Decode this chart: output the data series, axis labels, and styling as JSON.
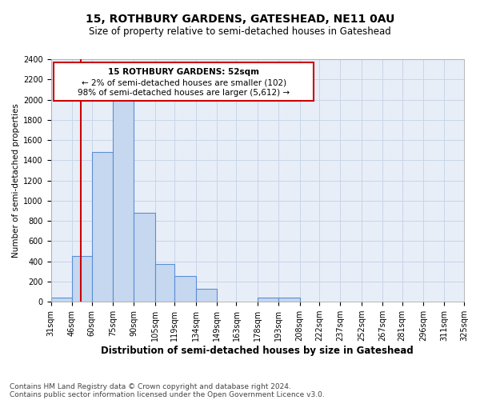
{
  "title": "15, ROTHBURY GARDENS, GATESHEAD, NE11 0AU",
  "subtitle": "Size of property relative to semi-detached houses in Gateshead",
  "xlabel": "Distribution of semi-detached houses by size in Gateshead",
  "ylabel": "Number of semi-detached properties",
  "footnote1": "Contains HM Land Registry data © Crown copyright and database right 2024.",
  "footnote2": "Contains public sector information licensed under the Open Government Licence v3.0.",
  "annotation_line1": "15 ROTHBURY GARDENS: 52sqm",
  "annotation_line2": "← 2% of semi-detached houses are smaller (102)",
  "annotation_line3": "98% of semi-detached houses are larger (5,612) →",
  "property_size": 52,
  "bar_edges": [
    31,
    46,
    60,
    75,
    90,
    105,
    119,
    134,
    149,
    163,
    178,
    193,
    208,
    222,
    237,
    252,
    267,
    281,
    296,
    311,
    325
  ],
  "bar_values": [
    40,
    450,
    1480,
    2000,
    880,
    370,
    255,
    125,
    0,
    0,
    40,
    40,
    0,
    0,
    0,
    0,
    0,
    0,
    0,
    0
  ],
  "bar_color": "#c5d8f0",
  "bar_edge_color": "#5b8ed6",
  "annotation_box_edge_color": "#cc0000",
  "marker_line_color": "#cc0000",
  "ylim": [
    0,
    2400
  ],
  "yticks": [
    0,
    200,
    400,
    600,
    800,
    1000,
    1200,
    1400,
    1600,
    1800,
    2000,
    2200,
    2400
  ],
  "grid_color": "#c8d4e8",
  "bg_color": "#e8eef8",
  "title_fontsize": 10,
  "subtitle_fontsize": 8.5,
  "xlabel_fontsize": 8.5,
  "ylabel_fontsize": 7.5,
  "tick_fontsize": 7,
  "annotation_fontsize": 7.5,
  "footnote_fontsize": 6.5
}
